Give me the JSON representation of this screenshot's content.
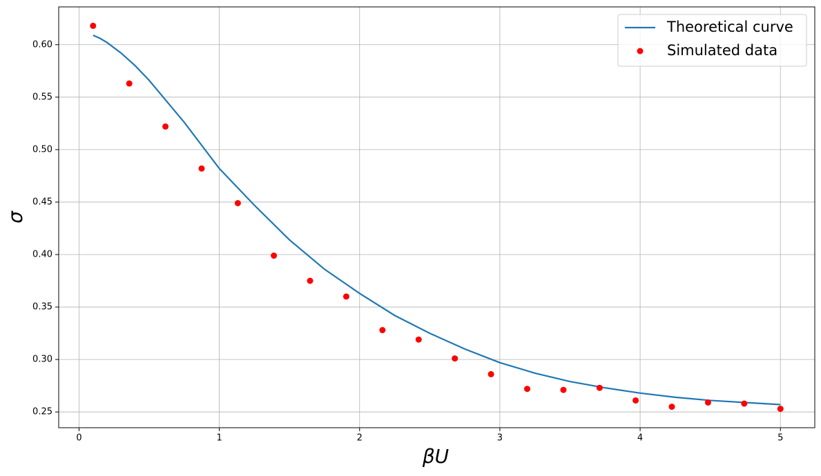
{
  "chart_data": {
    "type": "line",
    "x_label": "βU",
    "y_label": "σ",
    "xlim": [
      -0.145,
      5.245
    ],
    "ylim": [
      0.235,
      0.636
    ],
    "xticks": [
      0,
      1,
      2,
      3,
      4,
      5
    ],
    "yticks": [
      0.25,
      {
        "value": 0.3,
        "label": "0.30"
      },
      0.35,
      {
        "value": 0.4,
        "label": "0.40"
      },
      0.45,
      {
        "value": 0.5,
        "label": "0.50"
      },
      0.55,
      {
        "value": 0.6,
        "label": "0.60"
      }
    ],
    "grid": true,
    "legend": "upper right",
    "series": [
      {
        "name": "Theoretical curve",
        "type": "line",
        "color": "#1f77b4",
        "x": [
          0.1,
          0.15,
          0.2,
          0.3,
          0.4,
          0.5,
          0.75,
          1.0,
          1.25,
          1.5,
          1.75,
          2.0,
          2.25,
          2.5,
          2.75,
          3.0,
          3.25,
          3.5,
          3.75,
          4.0,
          4.25,
          4.5,
          4.75,
          5.0
        ],
        "values": [
          0.609,
          0.606,
          0.602,
          0.592,
          0.58,
          0.566,
          0.526,
          0.482,
          0.447,
          0.414,
          0.386,
          0.363,
          0.342,
          0.325,
          0.31,
          0.297,
          0.287,
          0.279,
          0.273,
          0.268,
          0.264,
          0.261,
          0.259,
          0.257
        ]
      },
      {
        "name": "Simulated data",
        "type": "scatter",
        "color": "#ff0000",
        "x": [
          0.1,
          0.358,
          0.616,
          0.874,
          1.132,
          1.389,
          1.647,
          1.905,
          2.163,
          2.421,
          2.679,
          2.937,
          3.195,
          3.453,
          3.711,
          3.968,
          4.226,
          4.484,
          4.742,
          5.0
        ],
        "values": [
          0.618,
          0.563,
          0.522,
          0.482,
          0.449,
          0.399,
          0.375,
          0.36,
          0.328,
          0.319,
          0.301,
          0.286,
          0.272,
          0.271,
          0.273,
          0.261,
          0.255,
          0.259,
          0.258,
          0.253
        ]
      }
    ]
  }
}
